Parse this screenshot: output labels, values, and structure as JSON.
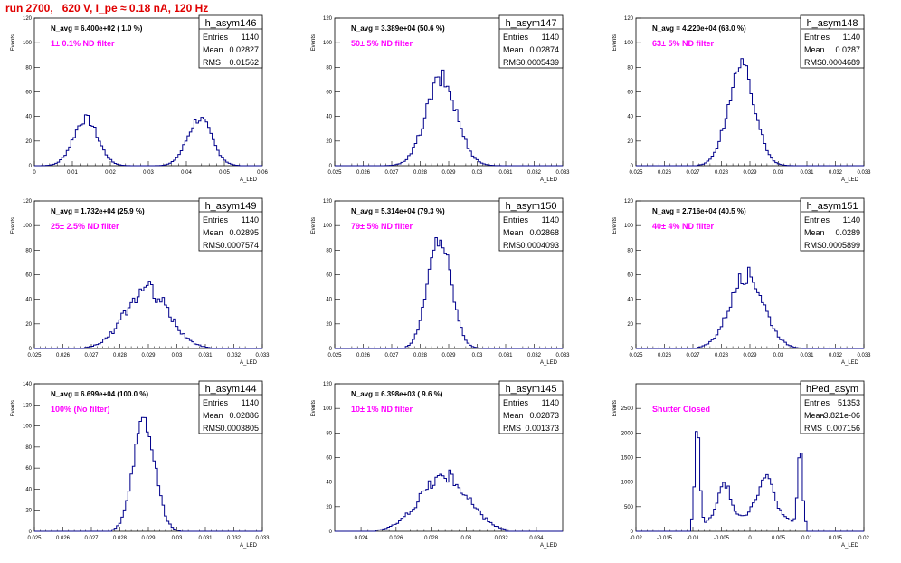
{
  "title": "run 2700,   620 V, I_pe ≈ 0.18 nA, 120 Hz",
  "colors": {
    "histogram": "#00008b",
    "title": "#e00000",
    "filter_label": "#ff00ff"
  },
  "chart_data": [
    {
      "type": "histogram",
      "name": "h_asym146",
      "navg": "N_avg = 6.400e+02 ( 1.0 %)",
      "filter": "1± 0.1% ND filter",
      "stats": [
        [
          "Entries",
          "1140"
        ],
        [
          "Mean",
          "0.02827"
        ],
        [
          "RMS",
          "0.01562"
        ]
      ],
      "xlim": [
        0,
        0.06
      ],
      "ylim": [
        0,
        120
      ],
      "xticks": [
        "0",
        "0.01",
        "0.02",
        "0.03",
        "0.04",
        "0.05",
        "0.06"
      ],
      "yticks": [
        "0",
        "20",
        "40",
        "60",
        "80",
        "100",
        "120"
      ],
      "xlabel": "A_LED",
      "ylabel": "Events",
      "peaks": [
        {
          "mu": 0.0135,
          "sigma": 0.0032,
          "amp": 38
        },
        {
          "mu": 0.0435,
          "sigma": 0.0032,
          "amp": 38
        }
      ],
      "noise": 0.1,
      "xmin": 0.002,
      "xmax": 0.054
    },
    {
      "type": "histogram",
      "name": "h_asym147",
      "navg": "N_avg = 3.389e+04 (50.6 %)",
      "filter": "50± 5% ND filter",
      "stats": [
        [
          "Entries",
          "1140"
        ],
        [
          "Mean",
          "0.02874"
        ],
        [
          "RMS",
          "0.0005439"
        ]
      ],
      "xlim": [
        0.025,
        0.033
      ],
      "ylim": [
        0,
        120
      ],
      "xticks": [
        "0.025",
        "0.026",
        "0.027",
        "0.028",
        "0.029",
        "0.03",
        "0.031",
        "0.032",
        "0.033"
      ],
      "yticks": [
        "0",
        "20",
        "40",
        "60",
        "80",
        "100",
        "120"
      ],
      "xlabel": "A_LED",
      "ylabel": "Events",
      "peaks": [
        {
          "mu": 0.02874,
          "sigma": 0.00054,
          "amp": 70
        }
      ],
      "noise": 0.12,
      "xmin": 0.0268,
      "xmax": 0.0308
    },
    {
      "type": "histogram",
      "name": "h_asym148",
      "navg": "N_avg = 4.220e+04 (63.0 %)",
      "filter": "63± 5% ND filter",
      "stats": [
        [
          "Entries",
          "1140"
        ],
        [
          "Mean",
          "0.0287"
        ],
        [
          "RMS",
          "0.0004689"
        ]
      ],
      "xlim": [
        0.025,
        0.033
      ],
      "ylim": [
        0,
        120
      ],
      "xticks": [
        "0.025",
        "0.026",
        "0.027",
        "0.028",
        "0.029",
        "0.03",
        "0.031",
        "0.032",
        "0.033"
      ],
      "yticks": [
        "0",
        "20",
        "40",
        "60",
        "80",
        "100",
        "120"
      ],
      "xlabel": "A_LED",
      "ylabel": "Events",
      "peaks": [
        {
          "mu": 0.0287,
          "sigma": 0.00047,
          "amp": 80
        }
      ],
      "noise": 0.1,
      "xmin": 0.0272,
      "xmax": 0.0305
    },
    {
      "type": "histogram",
      "name": "h_asym149",
      "navg": "N_avg = 1.732e+04 (25.9 %)",
      "filter": "25± 2.5% ND filter",
      "stats": [
        [
          "Entries",
          "1140"
        ],
        [
          "Mean",
          "0.02895"
        ],
        [
          "RMS",
          "0.0007574"
        ]
      ],
      "xlim": [
        0.025,
        0.033
      ],
      "ylim": [
        0,
        120
      ],
      "xticks": [
        "0.025",
        "0.026",
        "0.027",
        "0.028",
        "0.029",
        "0.03",
        "0.031",
        "0.032",
        "0.033"
      ],
      "yticks": [
        "0",
        "20",
        "40",
        "60",
        "80",
        "100",
        "120"
      ],
      "xlabel": "A_LED",
      "ylabel": "Events",
      "peaks": [
        {
          "mu": 0.02895,
          "sigma": 0.00076,
          "amp": 48
        }
      ],
      "noise": 0.15,
      "xmin": 0.0268,
      "xmax": 0.0312
    },
    {
      "type": "histogram",
      "name": "h_asym150",
      "navg": "N_avg = 5.314e+04 (79.3 %)",
      "filter": "79± 5% ND filter",
      "stats": [
        [
          "Entries",
          "1140"
        ],
        [
          "Mean",
          "0.02868"
        ],
        [
          "RMS",
          "0.0004093"
        ]
      ],
      "xlim": [
        0.025,
        0.033
      ],
      "ylim": [
        0,
        120
      ],
      "xticks": [
        "0.025",
        "0.026",
        "0.027",
        "0.028",
        "0.029",
        "0.03",
        "0.031",
        "0.032",
        "0.033"
      ],
      "yticks": [
        "0",
        "20",
        "40",
        "60",
        "80",
        "100",
        "120"
      ],
      "xlabel": "A_LED",
      "ylabel": "Events",
      "peaks": [
        {
          "mu": 0.02868,
          "sigma": 0.00041,
          "amp": 90
        }
      ],
      "noise": 0.1,
      "xmin": 0.0275,
      "xmax": 0.0302
    },
    {
      "type": "histogram",
      "name": "h_asym151",
      "navg": "N_avg = 2.716e+04 (40.5 %)",
      "filter": "40± 4% ND filter",
      "stats": [
        [
          "Entries",
          "1140"
        ],
        [
          "Mean",
          "0.0289"
        ],
        [
          "RMS",
          "0.0005899"
        ]
      ],
      "xlim": [
        0.025,
        0.033
      ],
      "ylim": [
        0,
        120
      ],
      "xticks": [
        "0.025",
        "0.026",
        "0.027",
        "0.028",
        "0.029",
        "0.03",
        "0.031",
        "0.032",
        "0.033"
      ],
      "yticks": [
        "0",
        "20",
        "40",
        "60",
        "80",
        "100",
        "120"
      ],
      "xlabel": "A_LED",
      "ylabel": "Events",
      "peaks": [
        {
          "mu": 0.0289,
          "sigma": 0.00059,
          "amp": 60
        }
      ],
      "noise": 0.12,
      "xmin": 0.0272,
      "xmax": 0.0308
    },
    {
      "type": "histogram",
      "name": "h_asym144",
      "navg": "N_avg = 6.699e+04 (100.0 %)",
      "filter": "100% (No filter)",
      "stats": [
        [
          "Entries",
          "1140"
        ],
        [
          "Mean",
          "0.02886"
        ],
        [
          "RMS",
          "0.0003805"
        ]
      ],
      "xlim": [
        0.025,
        0.033
      ],
      "ylim": [
        0,
        140
      ],
      "xticks": [
        "0.025",
        "0.026",
        "0.027",
        "0.028",
        "0.029",
        "0.03",
        "0.031",
        "0.032",
        "0.033"
      ],
      "yticks": [
        "0",
        "20",
        "40",
        "60",
        "80",
        "100",
        "120",
        "140"
      ],
      "xlabel": "A_LED",
      "ylabel": "Events",
      "peaks": [
        {
          "mu": 0.02886,
          "sigma": 0.00038,
          "amp": 105
        }
      ],
      "noise": 0.08,
      "xmin": 0.0277,
      "xmax": 0.0301
    },
    {
      "type": "histogram",
      "name": "h_asym145",
      "navg": "N_avg = 6.398e+03 ( 9.6 %)",
      "filter": "10± 1% ND filter",
      "stats": [
        [
          "Entries",
          "1140"
        ],
        [
          "Mean",
          "0.02873"
        ],
        [
          "RMS",
          "0.001373"
        ]
      ],
      "xlim": [
        0.0225,
        0.0355
      ],
      "ylim": [
        0,
        120
      ],
      "xticks": [
        "0.024",
        "0.026",
        "0.028",
        "0.03",
        "0.032",
        "0.034"
      ],
      "yticks": [
        "0",
        "20",
        "40",
        "60",
        "80",
        "100",
        "120"
      ],
      "xlabel": "A_LED",
      "ylabel": "Events",
      "peaks": [
        {
          "mu": 0.02873,
          "sigma": 0.00137,
          "amp": 45
        }
      ],
      "noise": 0.15,
      "xmin": 0.0248,
      "xmax": 0.0322
    },
    {
      "type": "histogram",
      "name": "hPed_asym",
      "navg": "",
      "filter": "Shutter Closed",
      "stats": [
        [
          "Entries",
          "51353"
        ],
        [
          "Mean",
          "-3.821e-06"
        ],
        [
          "RMS",
          "0.007156"
        ]
      ],
      "xlim": [
        -0.02,
        0.02
      ],
      "ylim": [
        0,
        3000
      ],
      "xticks": [
        "-0.02",
        "-0.015",
        "-0.01",
        "-0.005",
        "0",
        "0.005",
        "0.01",
        "0.015",
        "0.02"
      ],
      "yticks": [
        "0",
        "500",
        "1000",
        "1500",
        "2000",
        "2500"
      ],
      "xlabel": "A_LED",
      "ylabel": "Events",
      "peaks": [
        {
          "mu": -0.0092,
          "sigma": 0.0004,
          "amp": 2200
        },
        {
          "mu": 0.0088,
          "sigma": 0.0004,
          "amp": 1500
        },
        {
          "mu": -0.0045,
          "sigma": 0.0011,
          "amp": 700
        },
        {
          "mu": 0.0028,
          "sigma": 0.0015,
          "amp": 800
        },
        {
          "mu": 0.0,
          "sigma": 0.008,
          "amp": 300
        }
      ],
      "noise": 0.1,
      "xmin": -0.0105,
      "xmax": 0.0098
    }
  ]
}
